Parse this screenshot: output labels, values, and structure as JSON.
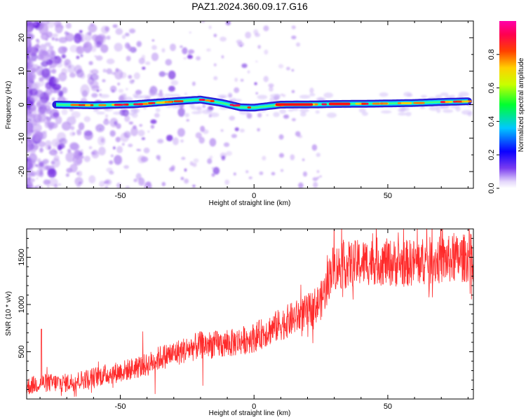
{
  "title": "PAZ1.2024.360.09.17.G16",
  "colors": {
    "snr_line": "#ff2a2a",
    "track_band": "#2a20d8",
    "noise": "#b58cf0",
    "axis": "#000000"
  },
  "chart_data": [
    {
      "type": "heatmap",
      "xlabel": "Height of straight line (km)",
      "ylabel": "Frequency (Hz)",
      "xlim": [
        -85,
        82
      ],
      "ylim": [
        -25,
        25
      ],
      "xticks": [
        -50,
        0,
        50
      ],
      "yticks": [
        -20,
        -10,
        0,
        10,
        20
      ],
      "colorbar": {
        "label": "Normalized spectral amplitude",
        "range": [
          0,
          1
        ],
        "ticks": [
          "0.0",
          "0.2",
          "0.4",
          "0.6",
          "0.8"
        ]
      },
      "signal_track": {
        "x": [
          -74,
          -60,
          -45,
          -30,
          -20,
          -12,
          -5,
          0,
          10,
          25,
          30,
          45,
          60,
          70,
          80
        ],
        "frequency": [
          0.0,
          -0.2,
          0.1,
          1.0,
          1.5,
          0.5,
          -0.8,
          -0.9,
          0.0,
          0.1,
          0.2,
          0.3,
          0.5,
          0.8,
          1.0
        ]
      },
      "grid": false,
      "legend": "none"
    },
    {
      "type": "line",
      "xlabel": "Height of straight line (km)",
      "ylabel": "SNR (10 * v/v)",
      "xlim": [
        -85,
        82
      ],
      "ylim": [
        0,
        1800
      ],
      "xticks": [
        -50,
        0,
        50
      ],
      "yticks": [
        500,
        1000,
        1500
      ],
      "series": [
        {
          "x": [
            -85,
            -80,
            -70,
            -60,
            -50,
            -40,
            -35,
            -30,
            -20,
            -10,
            0,
            10,
            20,
            25,
            27,
            29,
            35,
            45,
            55,
            65,
            75,
            82
          ],
          "values": [
            130,
            170,
            170,
            230,
            290,
            360,
            440,
            480,
            570,
            580,
            650,
            790,
            920,
            1040,
            1180,
            1380,
            1420,
            1460,
            1430,
            1460,
            1480,
            1500
          ]
        }
      ],
      "grid": false,
      "legend": "none"
    }
  ]
}
